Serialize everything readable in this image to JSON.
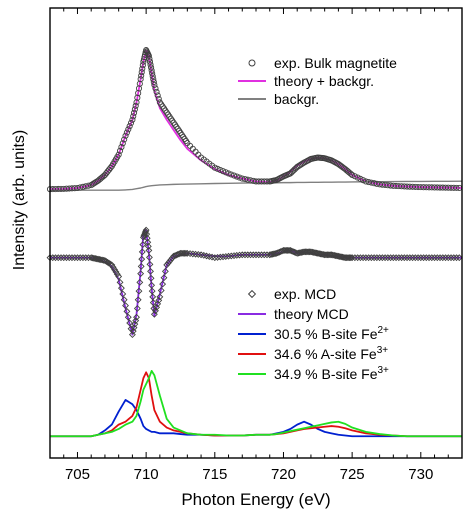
{
  "chart_data": {
    "type": "line",
    "xlabel": "Photon Energy (eV)",
    "ylabel": "Intensity (arb. units)",
    "xlim": [
      703,
      733
    ],
    "ylim": [
      -1.85,
      1.25
    ],
    "xticks": [
      705,
      710,
      715,
      720,
      725,
      730
    ],
    "y_tick_labels_shown": false,
    "grid": false,
    "legends": [
      {
        "placement": "top-right",
        "entries": [
          {
            "label": "exp. Bulk magnetite",
            "marker": "circle",
            "color": "#404040"
          },
          {
            "label": "theory + backgr.",
            "color": "#e030e0"
          },
          {
            "label": "backgr.",
            "color": "#808080"
          }
        ]
      },
      {
        "placement": "bottom-right",
        "entries": [
          {
            "label": "exp. MCD",
            "marker": "diamond",
            "color": "#404040"
          },
          {
            "label": "theory MCD",
            "color": "#8a2be2"
          },
          {
            "label": "30.5 % B-site Fe",
            "sup": "2+",
            "color": "#0020d0"
          },
          {
            "label": "34.6 % A-site Fe",
            "sup": "3+",
            "color": "#e01010"
          },
          {
            "label": "34.9 % B-site Fe",
            "sup": "3+",
            "color": "#20e020"
          }
        ]
      }
    ],
    "x": [
      703,
      704,
      705,
      706,
      706.5,
      707,
      707.5,
      708,
      708.5,
      709,
      709.3,
      709.6,
      709.8,
      710,
      710.2,
      710.4,
      710.6,
      711,
      711.5,
      712,
      712.5,
      713,
      714,
      715,
      716,
      717,
      718,
      719,
      719.5,
      720,
      720.5,
      721,
      721.5,
      722,
      722.5,
      723,
      723.5,
      724,
      724.5,
      725,
      726,
      727,
      728,
      729,
      730,
      731,
      732,
      733
    ],
    "series": [
      {
        "name": "exp. Bulk magnetite",
        "color": "#404040",
        "values": [
          0.002,
          0.004,
          0.01,
          0.03,
          0.06,
          0.1,
          0.16,
          0.24,
          0.37,
          0.48,
          0.6,
          0.76,
          0.88,
          0.96,
          0.92,
          0.82,
          0.72,
          0.6,
          0.53,
          0.46,
          0.39,
          0.32,
          0.22,
          0.15,
          0.11,
          0.075,
          0.055,
          0.055,
          0.065,
          0.09,
          0.11,
          0.155,
          0.185,
          0.21,
          0.22,
          0.215,
          0.2,
          0.175,
          0.14,
          0.1,
          0.055,
          0.035,
          0.025,
          0.02,
          0.016,
          0.014,
          0.012,
          0.01
        ]
      },
      {
        "name": "theory + backgr.",
        "color": "#e030e0",
        "values": [
          0.002,
          0.004,
          0.01,
          0.03,
          0.06,
          0.1,
          0.16,
          0.24,
          0.37,
          0.48,
          0.6,
          0.76,
          0.88,
          0.955,
          0.92,
          0.8,
          0.68,
          0.56,
          0.48,
          0.41,
          0.34,
          0.28,
          0.2,
          0.14,
          0.1,
          0.075,
          0.055,
          0.05,
          0.06,
          0.09,
          0.12,
          0.165,
          0.19,
          0.21,
          0.22,
          0.215,
          0.2,
          0.175,
          0.14,
          0.1,
          0.055,
          0.035,
          0.025,
          0.02,
          0.016,
          0.014,
          0.012,
          0.01
        ]
      },
      {
        "name": "backgr.",
        "color": "#808080",
        "values": [
          -0.005,
          -0.005,
          -0.005,
          -0.005,
          -0.005,
          -0.005,
          -0.005,
          -0.005,
          -0.003,
          0.0,
          0.005,
          0.01,
          0.015,
          0.02,
          0.023,
          0.026,
          0.028,
          0.031,
          0.033,
          0.035,
          0.036,
          0.037,
          0.039,
          0.041,
          0.042,
          0.044,
          0.045,
          0.046,
          0.046,
          0.047,
          0.047,
          0.048,
          0.048,
          0.049,
          0.049,
          0.05,
          0.05,
          0.051,
          0.051,
          0.052,
          0.053,
          0.053,
          0.054,
          0.055,
          0.055,
          0.056,
          0.056,
          0.057
        ]
      },
      {
        "name": "exp. MCD",
        "color": "#404040",
        "values": [
          -0.47,
          -0.47,
          -0.47,
          -0.47,
          -0.48,
          -0.49,
          -0.52,
          -0.6,
          -0.8,
          -1.0,
          -0.88,
          -0.58,
          -0.33,
          -0.28,
          -0.42,
          -0.66,
          -0.86,
          -0.74,
          -0.52,
          -0.46,
          -0.44,
          -0.44,
          -0.45,
          -0.47,
          -0.46,
          -0.45,
          -0.45,
          -0.45,
          -0.44,
          -0.42,
          -0.42,
          -0.44,
          -0.43,
          -0.43,
          -0.44,
          -0.45,
          -0.45,
          -0.46,
          -0.47,
          -0.47,
          -0.47,
          -0.47,
          -0.47,
          -0.47,
          -0.47,
          -0.47,
          -0.47,
          -0.47
        ]
      },
      {
        "name": "theory MCD",
        "color": "#8a2be2",
        "values": [
          -0.47,
          -0.47,
          -0.47,
          -0.47,
          -0.48,
          -0.5,
          -0.53,
          -0.62,
          -0.82,
          -1.0,
          -0.86,
          -0.56,
          -0.3,
          -0.28,
          -0.44,
          -0.68,
          -0.87,
          -0.72,
          -0.52,
          -0.46,
          -0.45,
          -0.44,
          -0.45,
          -0.46,
          -0.46,
          -0.45,
          -0.45,
          -0.45,
          -0.44,
          -0.43,
          -0.42,
          -0.44,
          -0.43,
          -0.44,
          -0.45,
          -0.45,
          -0.46,
          -0.46,
          -0.47,
          -0.47,
          -0.47,
          -0.47,
          -0.47,
          -0.47,
          -0.47,
          -0.47,
          -0.47,
          -0.47
        ]
      },
      {
        "name": "30.5 % B-site Fe2+",
        "color": "#0020d0",
        "values": [
          -1.7,
          -1.7,
          -1.7,
          -1.7,
          -1.69,
          -1.66,
          -1.62,
          -1.53,
          -1.45,
          -1.48,
          -1.52,
          -1.58,
          -1.63,
          -1.65,
          -1.66,
          -1.67,
          -1.67,
          -1.68,
          -1.68,
          -1.68,
          -1.685,
          -1.69,
          -1.69,
          -1.695,
          -1.695,
          -1.695,
          -1.69,
          -1.69,
          -1.68,
          -1.67,
          -1.65,
          -1.62,
          -1.6,
          -1.62,
          -1.65,
          -1.67,
          -1.68,
          -1.69,
          -1.695,
          -1.7,
          -1.7,
          -1.7,
          -1.7,
          -1.7,
          -1.7,
          -1.7,
          -1.7,
          -1.7
        ]
      },
      {
        "name": "34.6 % A-site Fe3+",
        "color": "#e01010",
        "values": [
          -1.7,
          -1.7,
          -1.7,
          -1.7,
          -1.69,
          -1.68,
          -1.66,
          -1.62,
          -1.6,
          -1.56,
          -1.5,
          -1.38,
          -1.3,
          -1.26,
          -1.3,
          -1.42,
          -1.52,
          -1.6,
          -1.64,
          -1.66,
          -1.67,
          -1.68,
          -1.69,
          -1.695,
          -1.695,
          -1.695,
          -1.69,
          -1.69,
          -1.685,
          -1.68,
          -1.67,
          -1.66,
          -1.65,
          -1.645,
          -1.64,
          -1.635,
          -1.63,
          -1.635,
          -1.645,
          -1.66,
          -1.68,
          -1.69,
          -1.695,
          -1.7,
          -1.7,
          -1.7,
          -1.7,
          -1.7
        ]
      },
      {
        "name": "34.9 % B-site Fe3+",
        "color": "#20e020",
        "values": [
          -1.7,
          -1.7,
          -1.7,
          -1.7,
          -1.69,
          -1.68,
          -1.67,
          -1.65,
          -1.62,
          -1.6,
          -1.56,
          -1.46,
          -1.38,
          -1.34,
          -1.3,
          -1.25,
          -1.28,
          -1.42,
          -1.58,
          -1.64,
          -1.66,
          -1.68,
          -1.69,
          -1.69,
          -1.695,
          -1.695,
          -1.69,
          -1.69,
          -1.685,
          -1.675,
          -1.665,
          -1.655,
          -1.645,
          -1.635,
          -1.625,
          -1.615,
          -1.605,
          -1.6,
          -1.615,
          -1.64,
          -1.67,
          -1.685,
          -1.695,
          -1.7,
          -1.7,
          -1.7,
          -1.7,
          -1.7
        ]
      }
    ]
  }
}
